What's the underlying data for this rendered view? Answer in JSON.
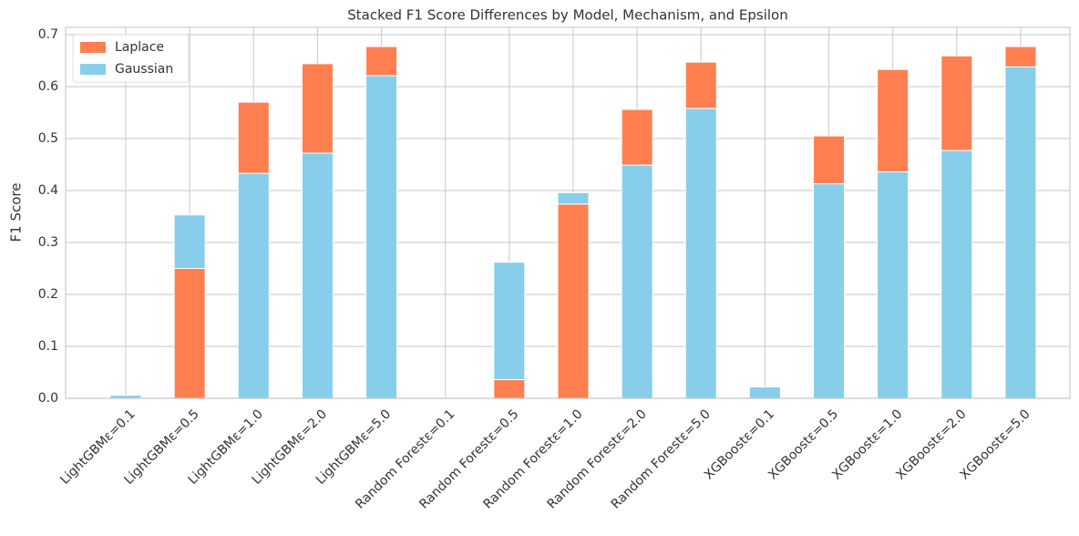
{
  "chart_data": {
    "type": "stacked_bar",
    "title": "Stacked F1 Score Differences by Model, Mechanism, and Epsilon",
    "y_label": "F1 Score",
    "categories": [
      "LightGBMε=0.1",
      "LightGBMε=0.5",
      "LightGBMε=1.0",
      "LightGBMε=2.0",
      "LightGBMε=5.0",
      "Random Forestε=0.1",
      "Random Forestε=0.5",
      "Random Forestε=1.0",
      "Random Forestε=2.0",
      "Random Forestε=5.0",
      "XGBoostε=0.1",
      "XGBoostε=0.5",
      "XGBoostε=1.0",
      "XGBoostε=2.0",
      "XGBoostε=5.0"
    ],
    "series": [
      {
        "name": "Laplace",
        "color": "#ff7f50",
        "values": [
          0,
          0.25,
          0.137,
          0.172,
          0.056,
          0,
          0.036,
          0.374,
          0.107,
          0.089,
          0,
          0.092,
          0.197,
          0.182,
          0.039
        ]
      },
      {
        "name": "Gaussian",
        "color": "#87ceeb",
        "values": [
          0.006,
          0.103,
          0.433,
          0.472,
          0.621,
          0,
          0.226,
          0.022,
          0.449,
          0.558,
          0.022,
          0.413,
          0.436,
          0.477,
          0.638
        ]
      }
    ],
    "laplace_below": [
      true,
      true,
      false,
      false,
      false,
      true,
      true,
      true,
      false,
      false,
      false,
      false,
      false,
      false,
      false
    ],
    "ylim": [
      0,
      0.714
    ],
    "yticks": [
      {
        "value": 0,
        "label": "0.0"
      },
      0.1,
      0.2,
      0.3,
      0.4,
      0.5,
      0.6,
      0.7
    ],
    "grid": true,
    "legend": "upper-left"
  }
}
